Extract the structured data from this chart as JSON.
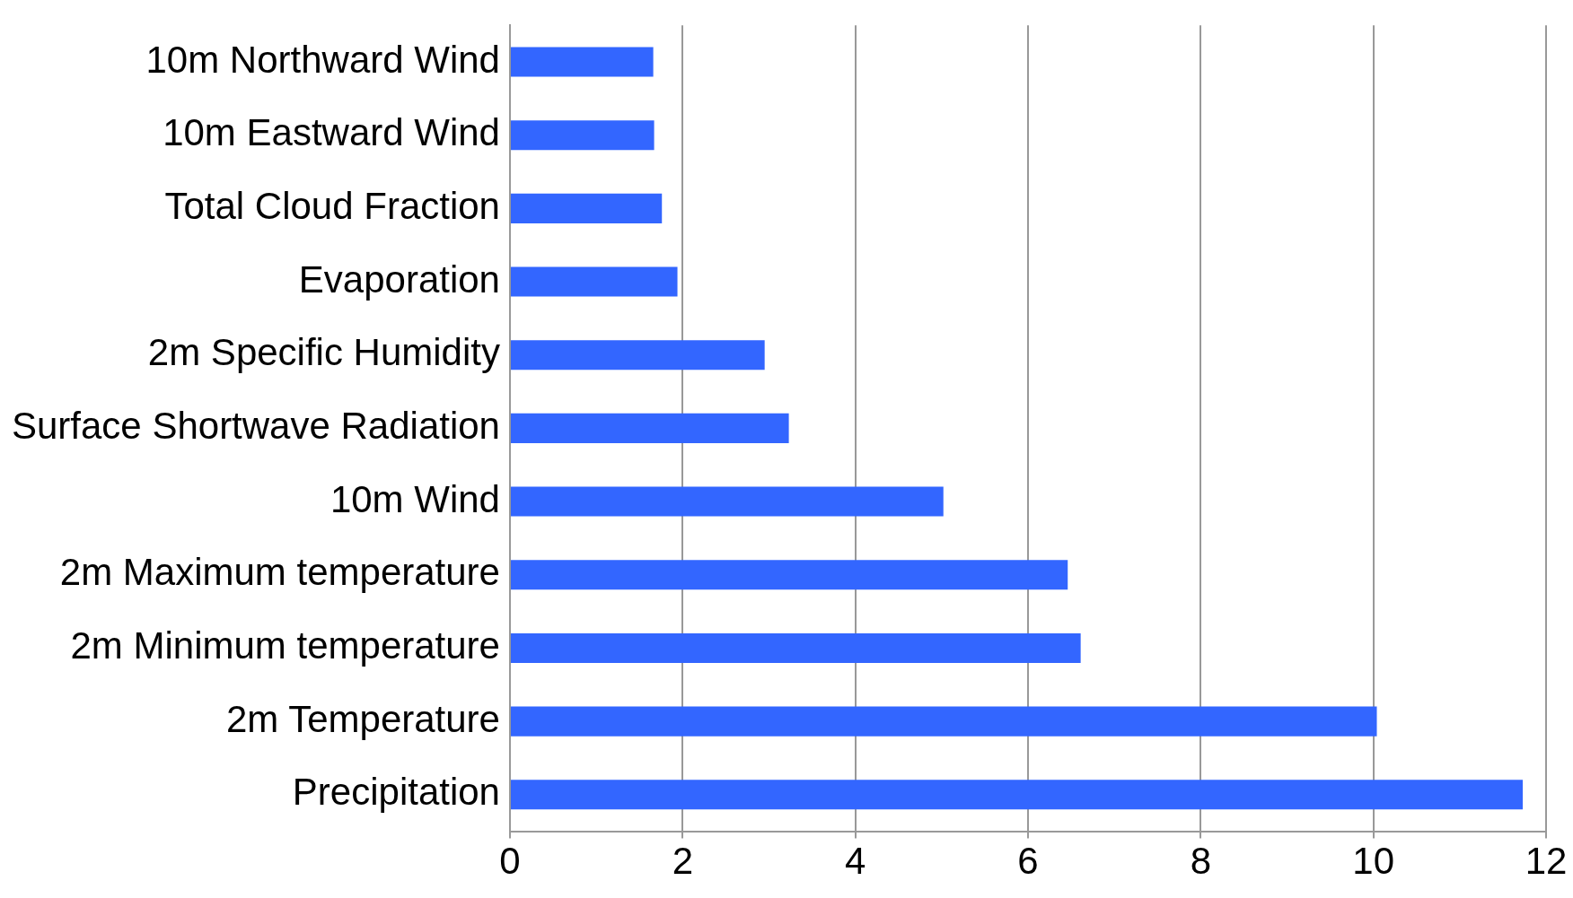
{
  "chart_data": {
    "type": "bar",
    "orientation": "horizontal",
    "categories": [
      "10m Northward Wind",
      "10m Eastward Wind",
      "Total Cloud Fraction",
      "Evaporation",
      "2m Specific Humidity",
      "Surface Shortwave Radiation",
      "10m Wind",
      "2m Maximum temperature",
      "2m Minimum temperature",
      "2m Temperature",
      "Precipitation"
    ],
    "values": [
      1.66,
      1.67,
      1.76,
      1.94,
      2.95,
      3.23,
      5.02,
      6.46,
      6.61,
      10.04,
      11.73
    ],
    "color": "#3366ff",
    "xlim": [
      0,
      12
    ],
    "xticks": [
      0,
      2,
      4,
      6,
      8,
      10,
      12
    ],
    "grid": "x",
    "legend": false
  }
}
